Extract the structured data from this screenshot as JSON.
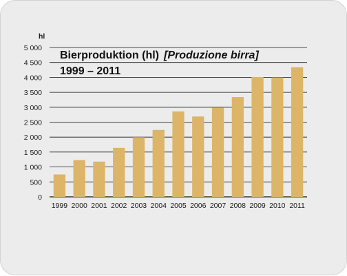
{
  "chart_data": {
    "type": "bar",
    "title": "Bierproduktion (hl)",
    "subtitle": "[Produzione birra]",
    "period": "1999 – 2011",
    "ylabel": "hl",
    "xlabel": "",
    "ylim": [
      0,
      5000
    ],
    "yticks": [
      0,
      500,
      1000,
      1500,
      2000,
      2500,
      3000,
      3500,
      4000,
      4500,
      5000
    ],
    "ytick_labels": [
      "0",
      "500",
      "1 000",
      "1 500",
      "2 000",
      "2 500",
      "3 000",
      "3 500",
      "4 000",
      "4 500",
      "5 000"
    ],
    "categories": [
      "1999",
      "2000",
      "2001",
      "2002",
      "2003",
      "2004",
      "2005",
      "2006",
      "2007",
      "2008",
      "2009",
      "2010",
      "2011"
    ],
    "values": [
      750,
      1230,
      1180,
      1640,
      2000,
      2240,
      2860,
      2690,
      2980,
      3340,
      4010,
      4000,
      4340
    ],
    "grid": true,
    "bar_color": "#dcb569",
    "grid_color": "#111111"
  }
}
